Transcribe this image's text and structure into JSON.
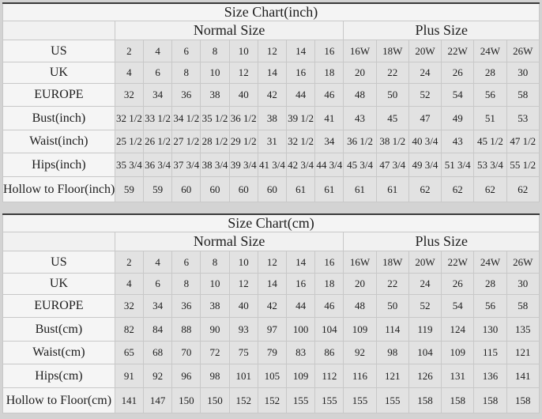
{
  "colors": {
    "page_bg": "#d3d3d3",
    "table_top_border": "#3a3a3a",
    "label_cell_bg": "#f5f5f5",
    "data_cell_bg": "#e2e2e2"
  },
  "chart_data": [
    {
      "type": "table",
      "title": "Size Chart(inch)",
      "column_groups": [
        {
          "label": "",
          "span": 1
        },
        {
          "label": "Normal Size",
          "span": 8
        },
        {
          "label": "Plus Size",
          "span": 6
        }
      ],
      "rows": [
        {
          "label": "US",
          "values": [
            "2",
            "4",
            "6",
            "8",
            "10",
            "12",
            "14",
            "16",
            "16W",
            "18W",
            "20W",
            "22W",
            "24W",
            "26W"
          ]
        },
        {
          "label": "UK",
          "values": [
            "4",
            "6",
            "8",
            "10",
            "12",
            "14",
            "16",
            "18",
            "20",
            "22",
            "24",
            "26",
            "28",
            "30"
          ]
        },
        {
          "label": "EUROPE",
          "values": [
            "32",
            "34",
            "36",
            "38",
            "40",
            "42",
            "44",
            "46",
            "48",
            "50",
            "52",
            "54",
            "56",
            "58"
          ]
        },
        {
          "label": "Bust(inch)",
          "values": [
            "32 1/2",
            "33 1/2",
            "34 1/2",
            "35 1/2",
            "36 1/2",
            "38",
            "39 1/2",
            "41",
            "43",
            "45",
            "47",
            "49",
            "51",
            "53"
          ]
        },
        {
          "label": "Waist(inch)",
          "values": [
            "25 1/2",
            "26 1/2",
            "27 1/2",
            "28 1/2",
            "29 1/2",
            "31",
            "32 1/2",
            "34",
            "36 1/2",
            "38 1/2",
            "40 3/4",
            "43",
            "45 1/2",
            "47 1/2"
          ]
        },
        {
          "label": "Hips(inch)",
          "values": [
            "35 3/4",
            "36 3/4",
            "37 3/4",
            "38 3/4",
            "39 3/4",
            "41 3/4",
            "42 3/4",
            "44 3/4",
            "45 3/4",
            "47 3/4",
            "49 3/4",
            "51 3/4",
            "53 3/4",
            "55 1/2"
          ]
        },
        {
          "label": "Hollow to Floor(inch)",
          "values": [
            "59",
            "59",
            "60",
            "60",
            "60",
            "60",
            "61",
            "61",
            "61",
            "61",
            "62",
            "62",
            "62",
            "62"
          ]
        }
      ]
    },
    {
      "type": "table",
      "title": "Size Chart(cm)",
      "column_groups": [
        {
          "label": "",
          "span": 1
        },
        {
          "label": "Normal Size",
          "span": 8
        },
        {
          "label": "Plus Size",
          "span": 6
        }
      ],
      "rows": [
        {
          "label": "US",
          "values": [
            "2",
            "4",
            "6",
            "8",
            "10",
            "12",
            "14",
            "16",
            "16W",
            "18W",
            "20W",
            "22W",
            "24W",
            "26W"
          ]
        },
        {
          "label": "UK",
          "values": [
            "4",
            "6",
            "8",
            "10",
            "12",
            "14",
            "16",
            "18",
            "20",
            "22",
            "24",
            "26",
            "28",
            "30"
          ]
        },
        {
          "label": "EUROPE",
          "values": [
            "32",
            "34",
            "36",
            "38",
            "40",
            "42",
            "44",
            "46",
            "48",
            "50",
            "52",
            "54",
            "56",
            "58"
          ]
        },
        {
          "label": "Bust(cm)",
          "values": [
            "82",
            "84",
            "88",
            "90",
            "93",
            "97",
            "100",
            "104",
            "109",
            "114",
            "119",
            "124",
            "130",
            "135"
          ]
        },
        {
          "label": "Waist(cm)",
          "values": [
            "65",
            "68",
            "70",
            "72",
            "75",
            "79",
            "83",
            "86",
            "92",
            "98",
            "104",
            "109",
            "115",
            "121"
          ]
        },
        {
          "label": "Hips(cm)",
          "values": [
            "91",
            "92",
            "96",
            "98",
            "101",
            "105",
            "109",
            "112",
            "116",
            "121",
            "126",
            "131",
            "136",
            "141"
          ]
        },
        {
          "label": "Hollow to Floor(cm)",
          "values": [
            "141",
            "147",
            "150",
            "150",
            "152",
            "152",
            "155",
            "155",
            "155",
            "155",
            "158",
            "158",
            "158",
            "158"
          ]
        }
      ]
    }
  ]
}
